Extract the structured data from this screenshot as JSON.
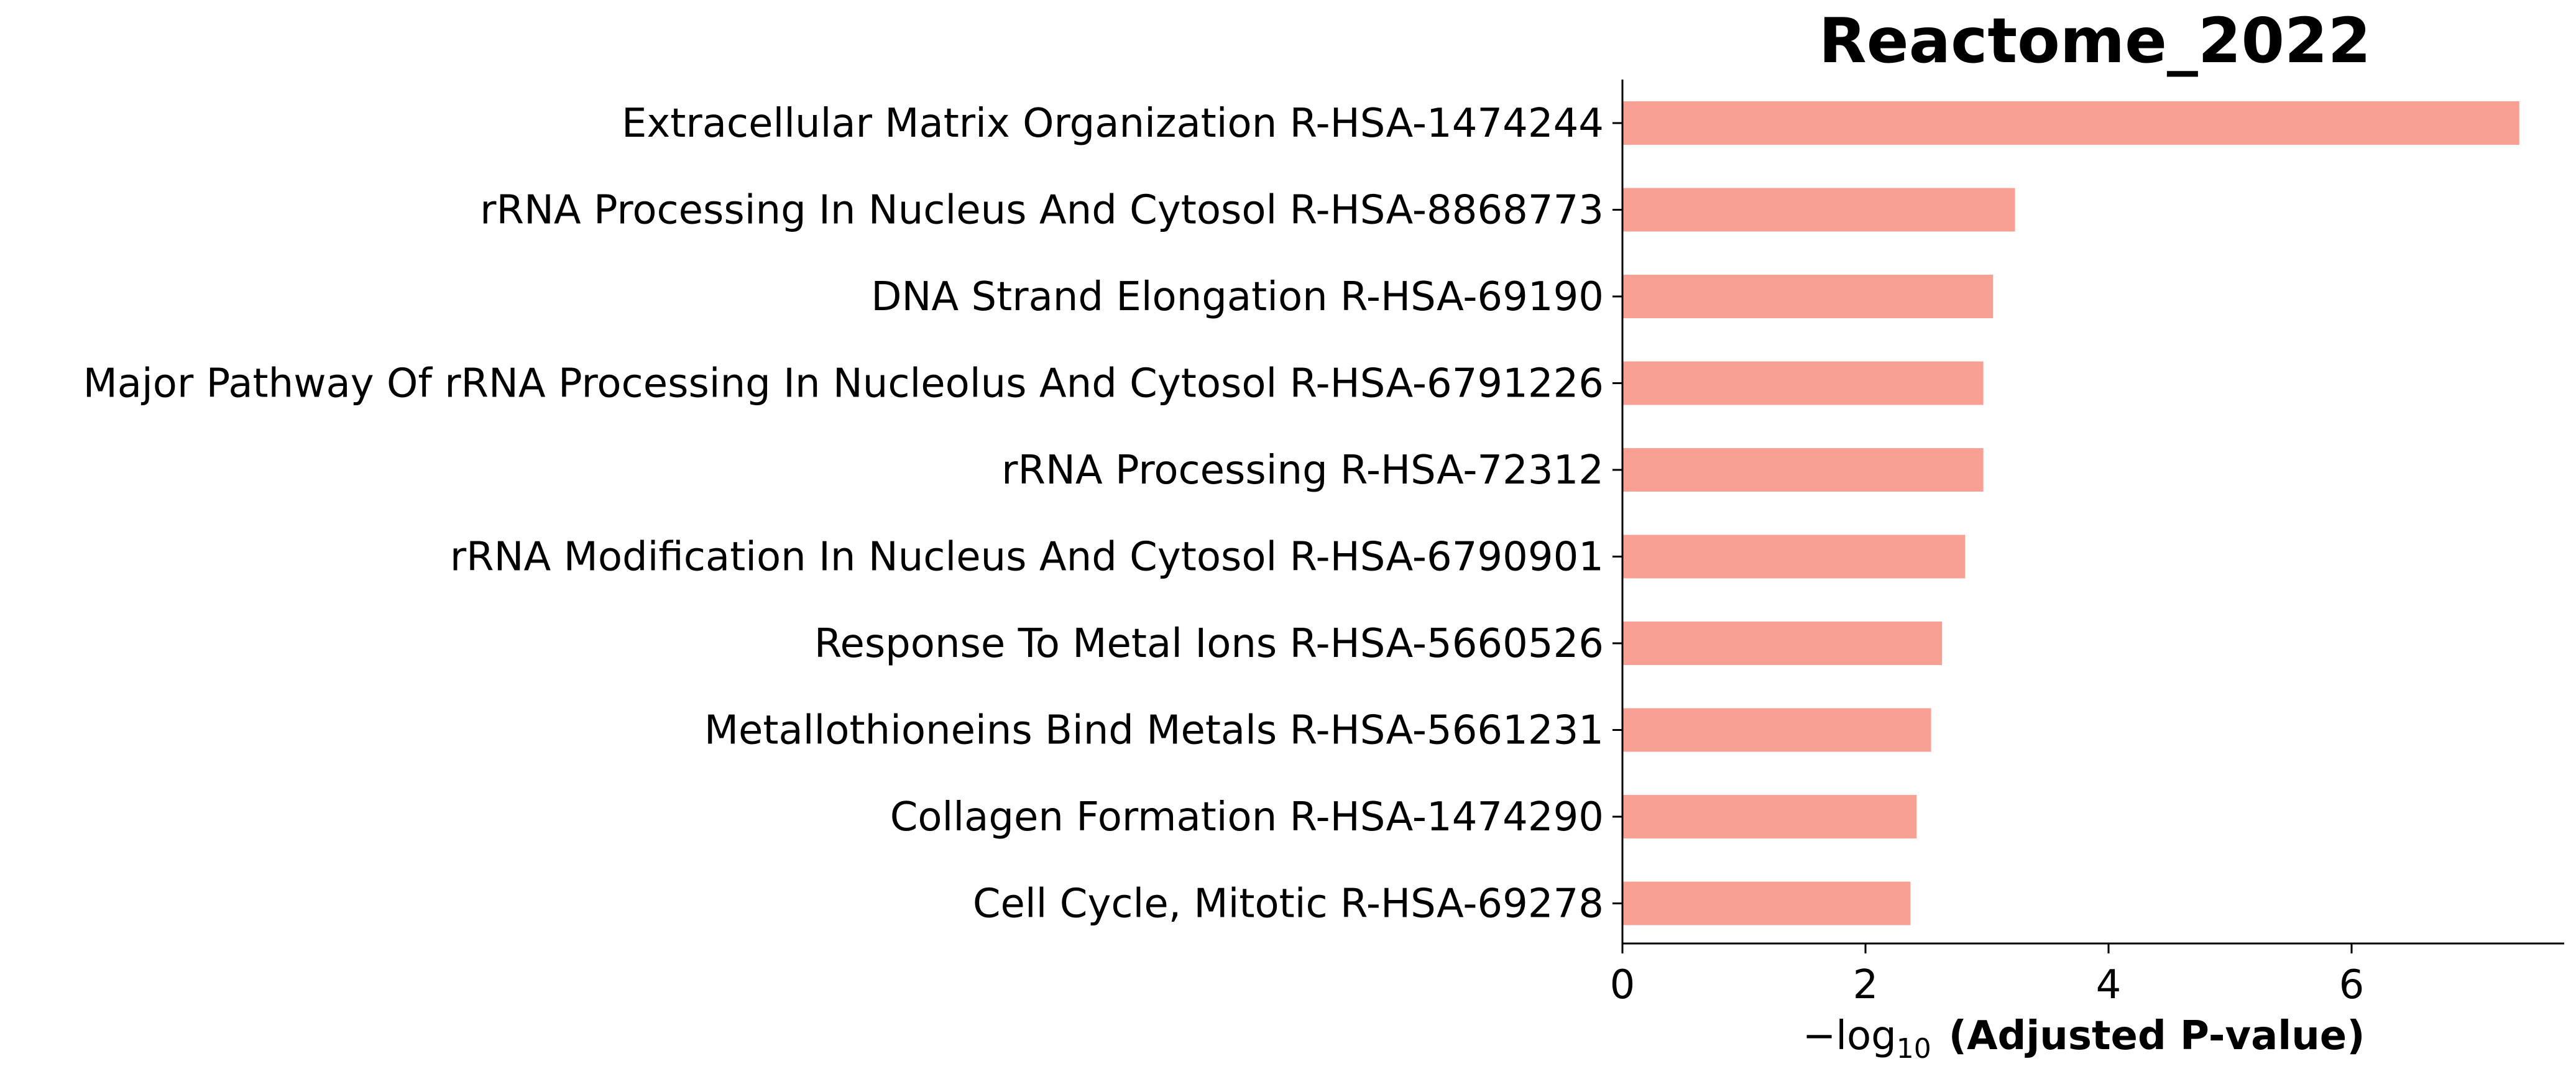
{
  "chart_data": {
    "type": "bar",
    "orientation": "horizontal",
    "title": "Reactome_2022",
    "categories": [
      "Extracellular Matrix Organization R-HSA-1474244",
      "rRNA Processing In Nucleus And Cytosol R-HSA-8868773",
      "DNA Strand Elongation R-HSA-69190",
      "Major Pathway Of rRNA Processing In Nucleolus And Cytosol R-HSA-6791226",
      "rRNA Processing R-HSA-72312",
      "rRNA Modification In Nucleus And Cytosol R-HSA-6790901",
      "Response To Metal Ions R-HSA-5660526",
      "Metallothioneins Bind Metals R-HSA-5661231",
      "Collagen Formation R-HSA-1474290",
      "Cell Cycle, Mitotic R-HSA-69278"
    ],
    "values": [
      7.38,
      3.23,
      3.05,
      2.97,
      2.97,
      2.82,
      2.63,
      2.54,
      2.42,
      2.37
    ],
    "xlabel_prefix": "−log",
    "xlabel_sub": "10",
    "xlabel_main": "(Adjusted P-value)",
    "xticks": [
      0,
      2,
      4,
      6
    ],
    "xlim": [
      0,
      7.75
    ],
    "bar_color": "#f9a094",
    "grid": false,
    "legend": "none"
  }
}
